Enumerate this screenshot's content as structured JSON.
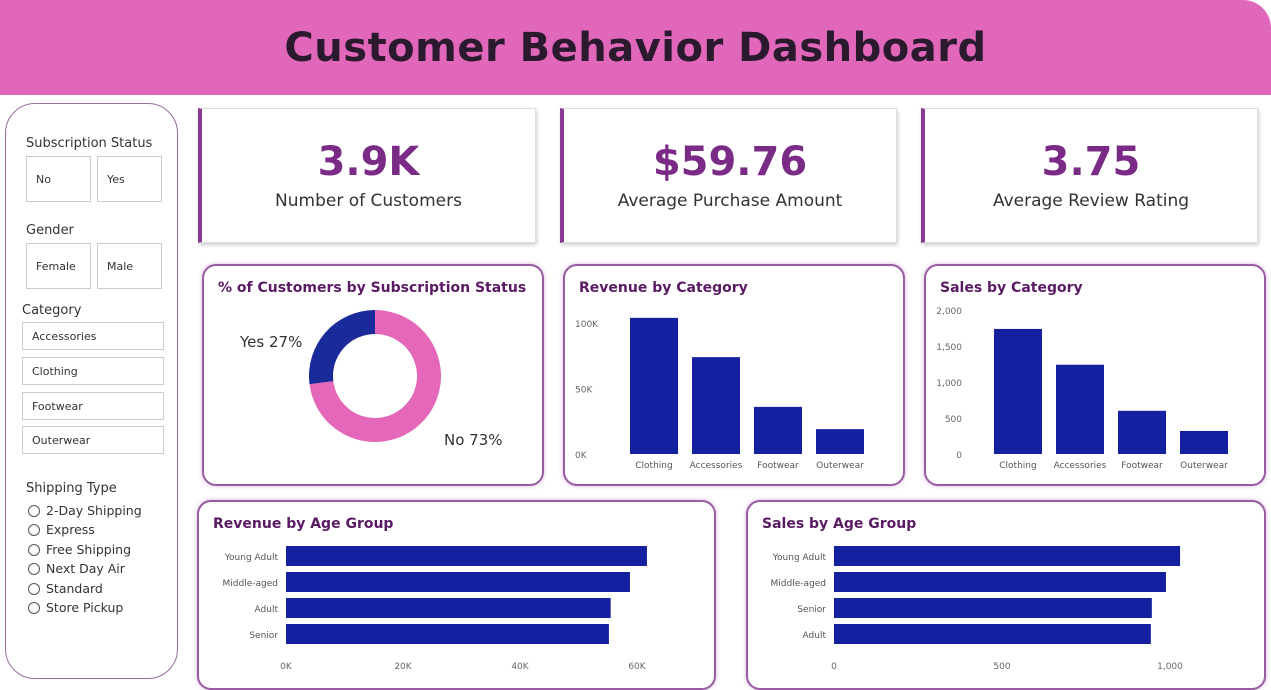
{
  "title": "Customer Behavior Dashboard",
  "filters": {
    "subscription": {
      "label": "Subscription Status",
      "options": [
        "No",
        "Yes"
      ]
    },
    "gender": {
      "label": "Gender",
      "options": [
        "Female",
        "Male"
      ]
    },
    "category": {
      "label": "Category",
      "options": [
        "Accessories",
        "Clothing",
        "Footwear",
        "Outerwear"
      ]
    },
    "shipping": {
      "label": "Shipping Type",
      "options": [
        "2-Day Shipping",
        "Express",
        "Free Shipping",
        "Next Day Air",
        "Standard",
        "Store Pickup"
      ]
    }
  },
  "kpis": [
    {
      "value": "3.9K",
      "label": "Number of Customers"
    },
    {
      "value": "$59.76",
      "label": "Average Purchase Amount"
    },
    {
      "value": "3.75",
      "label": "Average Review Rating"
    }
  ],
  "colors": {
    "header": "#e067ba",
    "bar": "#1420a0",
    "donut_yes": "#1a2a9a",
    "donut_no": "#e467b9",
    "kpi_value": "#7a2b86"
  },
  "chart_data": [
    {
      "type": "pie",
      "title": "% of Customers by Subscription Status",
      "categories": [
        "Yes",
        "No"
      ],
      "values": [
        27,
        73
      ],
      "labels": [
        "Yes 27%",
        "No 73%"
      ]
    },
    {
      "type": "bar",
      "title": "Revenue by Category",
      "categories": [
        "Clothing",
        "Accessories",
        "Footwear",
        "Outerwear"
      ],
      "values": [
        104000,
        74000,
        36000,
        19000
      ],
      "ylim": [
        0,
        110000
      ],
      "yticks": [
        0,
        50000,
        100000
      ],
      "ytick_labels": [
        "0K",
        "50K",
        "100K"
      ]
    },
    {
      "type": "bar",
      "title": "Sales by Category",
      "categories": [
        "Clothing",
        "Accessories",
        "Footwear",
        "Outerwear"
      ],
      "values": [
        1737,
        1240,
        600,
        320
      ],
      "ylim": [
        0,
        2000
      ],
      "yticks": [
        0,
        500,
        1000,
        1500,
        2000
      ],
      "ytick_labels": [
        "0",
        "500",
        "1,000",
        "1,500",
        "2,000"
      ]
    },
    {
      "type": "bar",
      "orientation": "horizontal",
      "title": "Revenue by Age Group",
      "categories": [
        "Young Adult",
        "Middle-aged",
        "Adult",
        "Senior"
      ],
      "values": [
        61700,
        58800,
        55500,
        55200
      ],
      "xlim": [
        0,
        65000
      ],
      "xticks": [
        0,
        20000,
        40000,
        60000
      ],
      "xtick_labels": [
        "0K",
        "20K",
        "40K",
        "60K"
      ]
    },
    {
      "type": "bar",
      "orientation": "horizontal",
      "title": "Sales by Age Group",
      "categories": [
        "Young Adult",
        "Middle-aged",
        "Senior",
        "Adult"
      ],
      "values": [
        1030,
        988,
        946,
        943
      ],
      "xlim": [
        0,
        1100
      ],
      "xticks": [
        0,
        500,
        1000
      ],
      "xtick_labels": [
        "0",
        "500",
        "1,000"
      ]
    }
  ]
}
